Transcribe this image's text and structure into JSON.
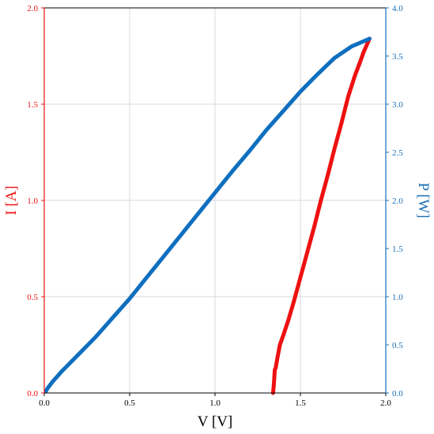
{
  "chart_data": {
    "type": "line",
    "xlabel": "V [V]",
    "ylabel_left": "I [A]",
    "ylabel_right": "P [W]",
    "xlim": [
      0.0,
      2.0
    ],
    "ylim_left": [
      0.0,
      2.0
    ],
    "ylim_right": [
      0.0,
      4.0
    ],
    "grid": true,
    "x_ticks": [
      "0.0",
      "0.5",
      "1.0",
      "1.5",
      "2.0"
    ],
    "y_left_ticks": [
      "0.0",
      "0.5",
      "1.0",
      "1.5",
      "2.0"
    ],
    "y_right_ticks": [
      "0.0",
      "0.5",
      "1.0",
      "1.5",
      "2.0",
      "2.5",
      "3.0",
      "3.5",
      "4.0"
    ],
    "colors": {
      "current": "#ee1111",
      "power": "#0f6fbf",
      "axis_left": "#ee1111",
      "axis_right": "#1a6fb5",
      "axis_bottom": "#000000"
    },
    "series": [
      {
        "axis": "left",
        "x": [
          1.34,
          1.345,
          1.35,
          1.355,
          1.365,
          1.38,
          1.4,
          1.43,
          1.46,
          1.5,
          1.54,
          1.58,
          1.62,
          1.66,
          1.7,
          1.74,
          1.78,
          1.82,
          1.85,
          1.87,
          1.89,
          1.905
        ],
        "y": [
          0.0,
          0.05,
          0.12,
          0.13,
          0.18,
          0.25,
          0.3,
          0.38,
          0.47,
          0.6,
          0.73,
          0.86,
          1.0,
          1.13,
          1.27,
          1.4,
          1.54,
          1.65,
          1.72,
          1.77,
          1.81,
          1.84
        ]
      },
      {
        "axis": "right",
        "x": [
          0.01,
          0.02,
          0.05,
          0.1,
          0.2,
          0.3,
          0.4,
          0.5,
          0.6,
          0.7,
          0.8,
          0.9,
          1.0,
          1.1,
          1.2,
          1.3,
          1.4,
          1.5,
          1.6,
          1.7,
          1.8,
          1.905
        ],
        "y": [
          0.02,
          0.05,
          0.12,
          0.22,
          0.4,
          0.58,
          0.78,
          0.98,
          1.2,
          1.42,
          1.64,
          1.86,
          2.08,
          2.3,
          2.51,
          2.73,
          2.93,
          3.13,
          3.31,
          3.48,
          3.6,
          3.68
        ]
      }
    ]
  }
}
